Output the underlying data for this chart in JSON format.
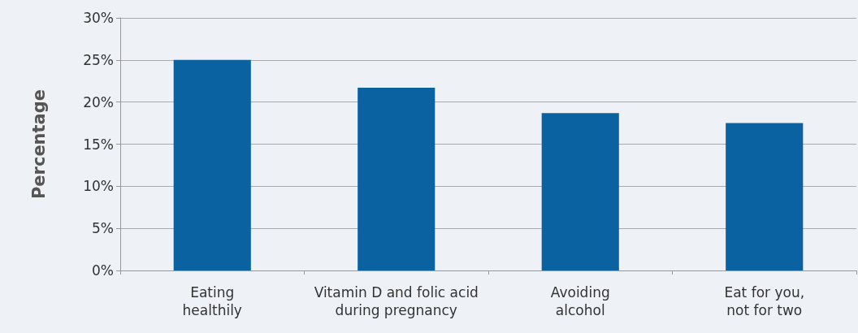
{
  "chart_data": {
    "type": "bar",
    "ylabel": "Percentage",
    "categories": [
      "Eating\nhealthily",
      "Vitamin D and folic acid\nduring pregnancy",
      "Avoiding\nalcohol",
      "Eat for you,\nnot for two"
    ],
    "values": [
      25,
      21.7,
      18.7,
      17.5
    ],
    "color": "#0a62a0",
    "ylim": [
      0,
      30
    ],
    "yticks": [
      {
        "value": 0,
        "label": "0%"
      },
      {
        "value": 5,
        "label": "5%"
      },
      {
        "value": 10,
        "label": "10%"
      },
      {
        "value": 15,
        "label": "15%"
      },
      {
        "value": 20,
        "label": "20%"
      },
      {
        "value": 25,
        "label": "25%"
      },
      {
        "value": 30,
        "label": "30%"
      }
    ],
    "grid": "y"
  }
}
